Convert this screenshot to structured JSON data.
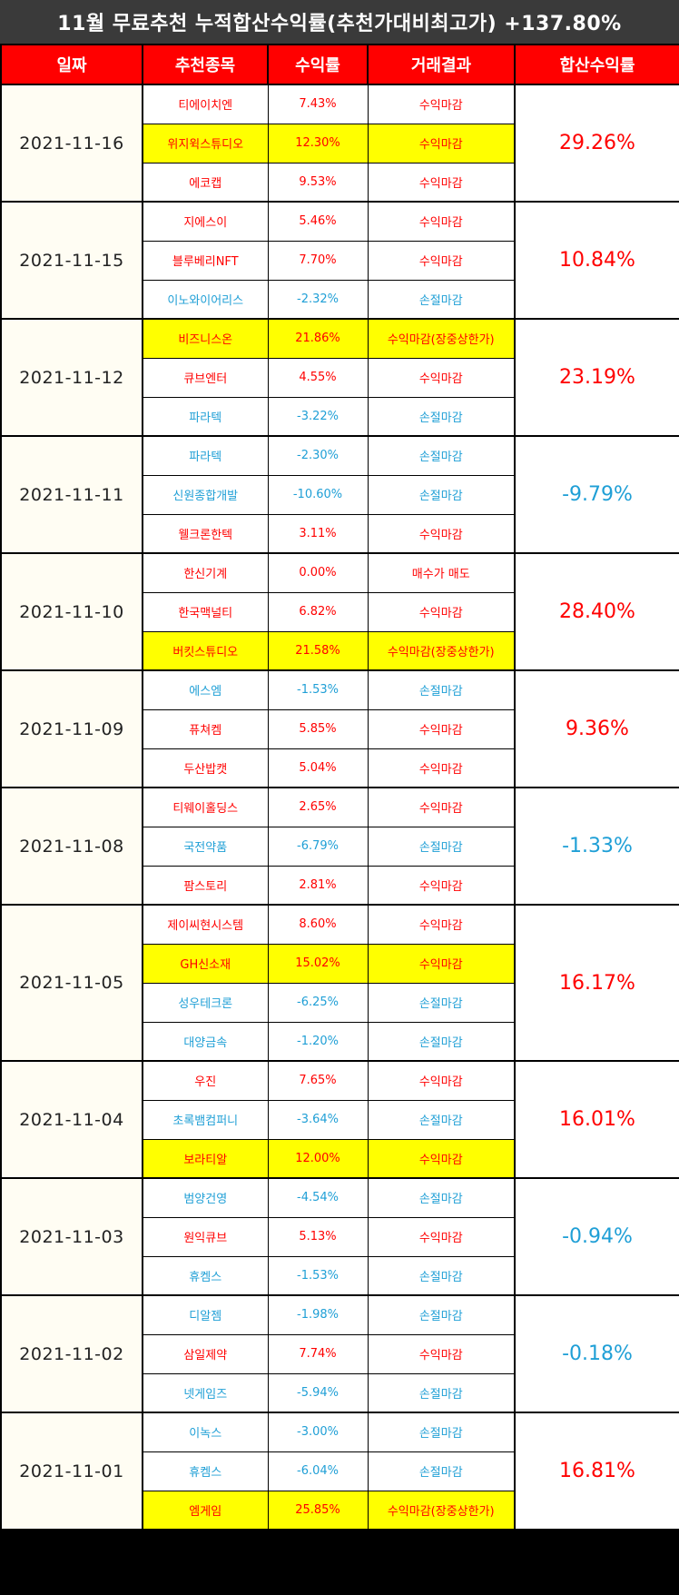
{
  "title": "11월 무료추천 누적합산수익률(추천가대비최고가) +137.80%",
  "headers": [
    "일짜",
    "추천종목",
    "수익률",
    "거래결과",
    "합산수익률"
  ],
  "groups": [
    {
      "date": "2021-11-16",
      "total": "29.26%",
      "total_sign": "pos",
      "rows": [
        {
          "name": "티에이치엔",
          "rate": "7.43%",
          "result": "수익마감",
          "sign": "pos",
          "hl": false
        },
        {
          "name": "위지윅스튜디오",
          "rate": "12.30%",
          "result": "수익마감",
          "sign": "pos",
          "hl": true
        },
        {
          "name": "에코캡",
          "rate": "9.53%",
          "result": "수익마감",
          "sign": "pos",
          "hl": false
        }
      ]
    },
    {
      "date": "2021-11-15",
      "total": "10.84%",
      "total_sign": "pos",
      "rows": [
        {
          "name": "지에스이",
          "rate": "5.46%",
          "result": "수익마감",
          "sign": "pos",
          "hl": false
        },
        {
          "name": "블루베리NFT",
          "rate": "7.70%",
          "result": "수익마감",
          "sign": "pos",
          "hl": false
        },
        {
          "name": "이노와이어리스",
          "rate": "-2.32%",
          "result": "손절마감",
          "sign": "neg",
          "hl": false
        }
      ]
    },
    {
      "date": "2021-11-12",
      "total": "23.19%",
      "total_sign": "pos",
      "rows": [
        {
          "name": "비즈니스온",
          "rate": "21.86%",
          "result": "수익마감(장중상한가)",
          "sign": "pos",
          "hl": true
        },
        {
          "name": "큐브엔터",
          "rate": "4.55%",
          "result": "수익마감",
          "sign": "pos",
          "hl": false
        },
        {
          "name": "파라텍",
          "rate": "-3.22%",
          "result": "손절마감",
          "sign": "neg",
          "hl": false
        }
      ]
    },
    {
      "date": "2021-11-11",
      "total": "-9.79%",
      "total_sign": "neg",
      "rows": [
        {
          "name": "파라텍",
          "rate": "-2.30%",
          "result": "손절마감",
          "sign": "neg",
          "hl": false
        },
        {
          "name": "신원종합개발",
          "rate": "-10.60%",
          "result": "손절마감",
          "sign": "neg",
          "hl": false
        },
        {
          "name": "웰크론한텍",
          "rate": "3.11%",
          "result": "수익마감",
          "sign": "pos",
          "hl": false
        }
      ]
    },
    {
      "date": "2021-11-10",
      "total": "28.40%",
      "total_sign": "pos",
      "rows": [
        {
          "name": "한신기계",
          "rate": "0.00%",
          "result": "매수가 매도",
          "sign": "pos",
          "hl": false
        },
        {
          "name": "한국맥널티",
          "rate": "6.82%",
          "result": "수익마감",
          "sign": "pos",
          "hl": false
        },
        {
          "name": "버킷스튜디오",
          "rate": "21.58%",
          "result": "수익마감(장중상한가)",
          "sign": "pos",
          "hl": true
        }
      ]
    },
    {
      "date": "2021-11-09",
      "total": "9.36%",
      "total_sign": "pos",
      "rows": [
        {
          "name": "에스엠",
          "rate": "-1.53%",
          "result": "손절마감",
          "sign": "neg",
          "hl": false
        },
        {
          "name": "퓨쳐켐",
          "rate": "5.85%",
          "result": "수익마감",
          "sign": "pos",
          "hl": false
        },
        {
          "name": "두산밥캣",
          "rate": "5.04%",
          "result": "수익마감",
          "sign": "pos",
          "hl": false
        }
      ]
    },
    {
      "date": "2021-11-08",
      "total": "-1.33%",
      "total_sign": "neg",
      "rows": [
        {
          "name": "티웨이홀딩스",
          "rate": "2.65%",
          "result": "수익마감",
          "sign": "pos",
          "hl": false
        },
        {
          "name": "국전약품",
          "rate": "-6.79%",
          "result": "손절마감",
          "sign": "neg",
          "hl": false
        },
        {
          "name": "팜스토리",
          "rate": "2.81%",
          "result": "수익마감",
          "sign": "pos",
          "hl": false
        }
      ]
    },
    {
      "date": "2021-11-05",
      "total": "16.17%",
      "total_sign": "pos",
      "rows": [
        {
          "name": "제이씨현시스템",
          "rate": "8.60%",
          "result": "수익마감",
          "sign": "pos",
          "hl": false
        },
        {
          "name": "GH신소재",
          "rate": "15.02%",
          "result": "수익마감",
          "sign": "pos",
          "hl": true
        },
        {
          "name": "성우테크론",
          "rate": "-6.25%",
          "result": "손절마감",
          "sign": "neg",
          "hl": false
        },
        {
          "name": "대양금속",
          "rate": "-1.20%",
          "result": "손절마감",
          "sign": "neg",
          "hl": false
        }
      ]
    },
    {
      "date": "2021-11-04",
      "total": "16.01%",
      "total_sign": "pos",
      "rows": [
        {
          "name": "우진",
          "rate": "7.65%",
          "result": "수익마감",
          "sign": "pos",
          "hl": false
        },
        {
          "name": "초록뱀컴퍼니",
          "rate": "-3.64%",
          "result": "손절마감",
          "sign": "neg",
          "hl": false
        },
        {
          "name": "보라티알",
          "rate": "12.00%",
          "result": "수익마감",
          "sign": "pos",
          "hl": true
        }
      ]
    },
    {
      "date": "2021-11-03",
      "total": "-0.94%",
      "total_sign": "neg",
      "rows": [
        {
          "name": "범양건영",
          "rate": "-4.54%",
          "result": "손절마감",
          "sign": "neg",
          "hl": false
        },
        {
          "name": "원익큐브",
          "rate": "5.13%",
          "result": "수익마감",
          "sign": "pos",
          "hl": false
        },
        {
          "name": "휴켐스",
          "rate": "-1.53%",
          "result": "손절마감",
          "sign": "neg",
          "hl": false
        }
      ]
    },
    {
      "date": "2021-11-02",
      "total": "-0.18%",
      "total_sign": "neg",
      "rows": [
        {
          "name": "디알젬",
          "rate": "-1.98%",
          "result": "손절마감",
          "sign": "neg",
          "hl": false
        },
        {
          "name": "삼일제약",
          "rate": "7.74%",
          "result": "수익마감",
          "sign": "pos",
          "hl": false
        },
        {
          "name": "넷게임즈",
          "rate": "-5.94%",
          "result": "손절마감",
          "sign": "neg",
          "hl": false
        }
      ]
    },
    {
      "date": "2021-11-01",
      "total": "16.81%",
      "total_sign": "pos",
      "rows": [
        {
          "name": "이녹스",
          "rate": "-3.00%",
          "result": "손절마감",
          "sign": "neg",
          "hl": false
        },
        {
          "name": "휴켐스",
          "rate": "-6.04%",
          "result": "손절마감",
          "sign": "neg",
          "hl": false
        },
        {
          "name": "엠게임",
          "rate": "25.85%",
          "result": "수익마감(장중상한가)",
          "sign": "pos",
          "hl": true
        }
      ]
    }
  ]
}
